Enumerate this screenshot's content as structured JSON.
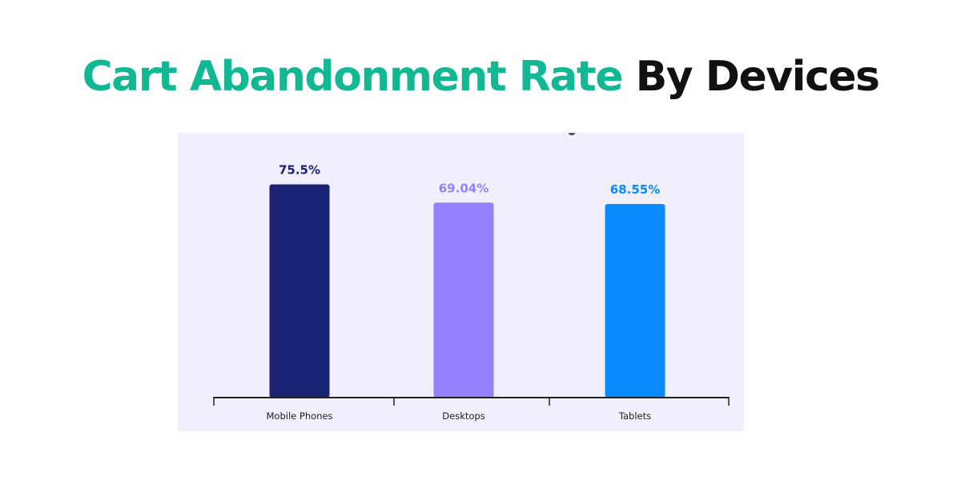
{
  "header": {
    "title_accent": "Cart Abandonment Rate",
    "title_rest": "By Devices"
  },
  "colors": {
    "title_accent": "#12b894",
    "panel_bg": "#f1effc"
  },
  "chart_data": {
    "type": "bar",
    "categories": [
      "Mobile Phones",
      "Desktops",
      "Tablets"
    ],
    "values": [
      75.5,
      69.04,
      68.55
    ],
    "value_labels": [
      "75.5%",
      "69.04%",
      "68.55%"
    ],
    "bar_colors": [
      "#1a2373",
      "#9382fb",
      "#0a8bfc"
    ],
    "label_colors": [
      "#1a2373",
      "#9382fb",
      "#0a8bfc"
    ],
    "unit": "%",
    "ylim": [
      0,
      100
    ],
    "grid": false,
    "legend": "none"
  }
}
